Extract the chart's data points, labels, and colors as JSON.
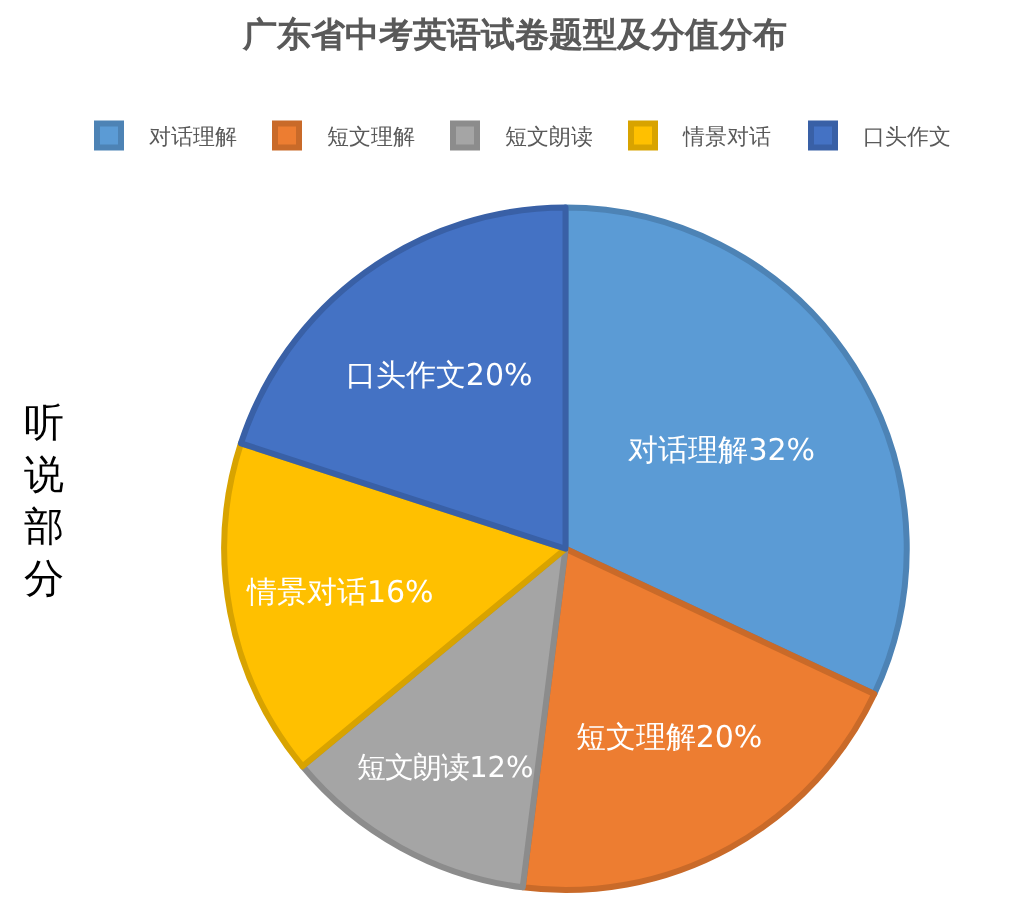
{
  "chart_data": {
    "type": "pie",
    "title": "广东省中考英语试卷题型及分值分布",
    "categories": [
      "对话理解",
      "短文理解",
      "短文朗读",
      "情景对话",
      "口头作文"
    ],
    "values": [
      32,
      20,
      12,
      16,
      20
    ],
    "colors": [
      "#5b9bd5",
      "#ed7d31",
      "#a5a5a5",
      "#ffc000",
      "#4472c4"
    ],
    "value_labels": [
      "对话理解32%",
      "短文理解20%",
      "短文朗读12%",
      "情景对话16%",
      "口头作文20%"
    ],
    "annotations": [
      "听说部分"
    ],
    "legend": "top"
  }
}
